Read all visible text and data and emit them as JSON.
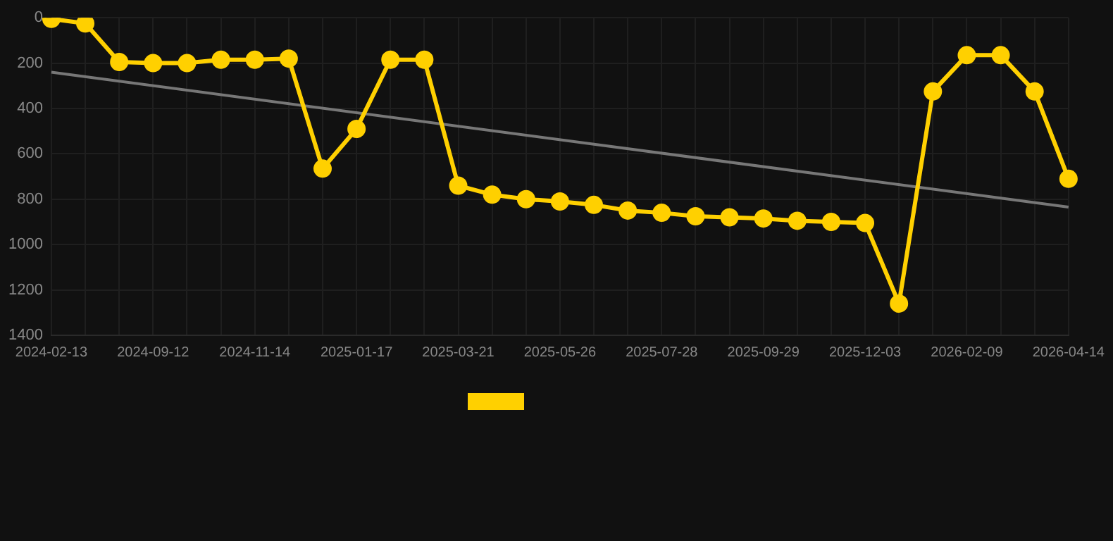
{
  "chart_data": {
    "type": "line",
    "categories": [
      "2024-02-13",
      null,
      null,
      "2024-09-12",
      null,
      null,
      "2024-11-14",
      null,
      null,
      "2025-01-17",
      null,
      null,
      "2025-03-21",
      null,
      null,
      "2025-05-26",
      null,
      null,
      "2025-07-28",
      null,
      null,
      "2025-09-29",
      null,
      null,
      "2025-12-03",
      null,
      null,
      "2026-02-09",
      null,
      null,
      "2026-04-14"
    ],
    "series": [
      {
        "color": "#ffd000",
        "marker": "circle",
        "values": [
          5,
          25,
          195,
          200,
          200,
          185,
          185,
          180,
          665,
          490,
          185,
          185,
          740,
          780,
          800,
          810,
          825,
          850,
          860,
          875,
          880,
          885,
          895,
          900,
          905,
          1260,
          325,
          165,
          165,
          325,
          710
        ]
      },
      {
        "color": "#777777",
        "marker": "none",
        "values": [
          240,
          null,
          null,
          null,
          null,
          null,
          null,
          null,
          null,
          null,
          null,
          null,
          null,
          null,
          null,
          null,
          null,
          null,
          null,
          null,
          null,
          null,
          null,
          null,
          null,
          null,
          null,
          null,
          null,
          null,
          835
        ]
      }
    ],
    "ylim": [
      1400,
      0
    ],
    "yticks": [
      0,
      200,
      400,
      600,
      800,
      1000,
      1200,
      1400
    ],
    "grid": true,
    "line_style": "solid"
  }
}
